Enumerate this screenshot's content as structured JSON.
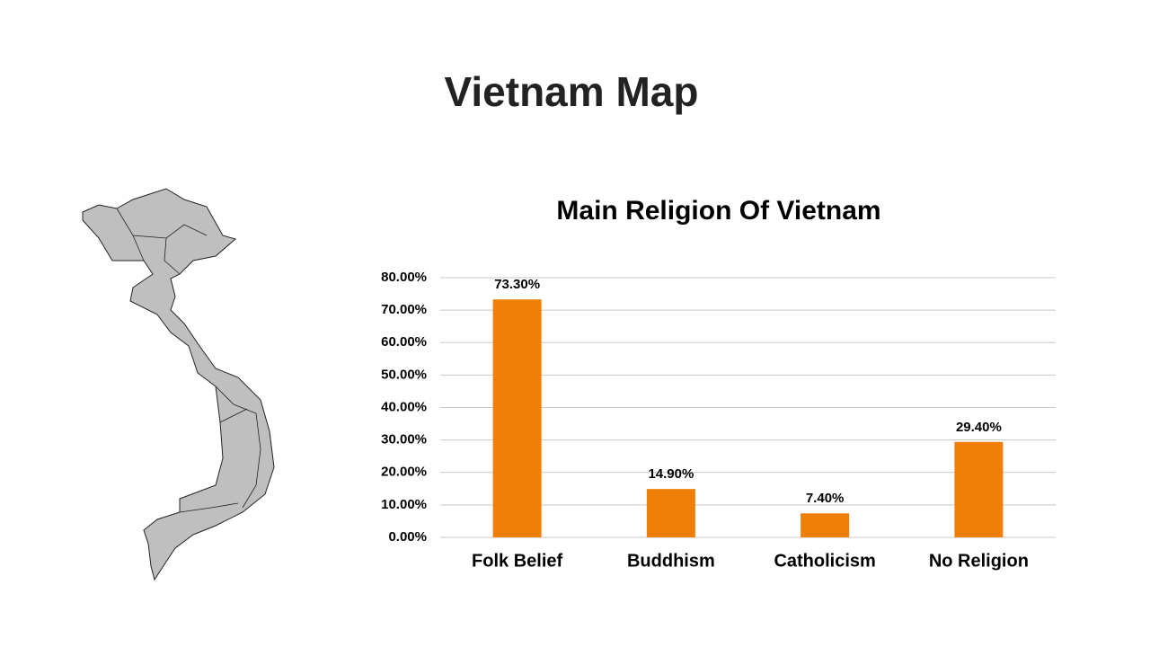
{
  "header": {
    "title": "Vietnam Map"
  },
  "chart_data": {
    "type": "bar",
    "title": "Main Religion Of Vietnam",
    "categories": [
      "Folk Belief",
      "Buddhism",
      "Catholicism",
      "No Religion"
    ],
    "values": [
      73.3,
      14.9,
      7.4,
      29.4
    ],
    "value_labels": [
      "73.30%",
      "14.90%",
      "7.40%",
      "29.40%"
    ],
    "color": "#f07f09",
    "ylim": [
      0,
      80
    ],
    "yticks": [
      {
        "value": 0,
        "label": "0.00%"
      },
      {
        "value": 10,
        "label": "10.00%"
      },
      {
        "value": 20,
        "label": "20.00%"
      },
      {
        "value": 30,
        "label": "30.00%"
      },
      {
        "value": 40,
        "label": "40.00%"
      },
      {
        "value": 50,
        "label": "50.00%"
      },
      {
        "value": 60,
        "label": "60.00%"
      },
      {
        "value": 70,
        "label": "70.00%"
      },
      {
        "value": 80,
        "label": "80.00%"
      }
    ],
    "grid": true
  }
}
